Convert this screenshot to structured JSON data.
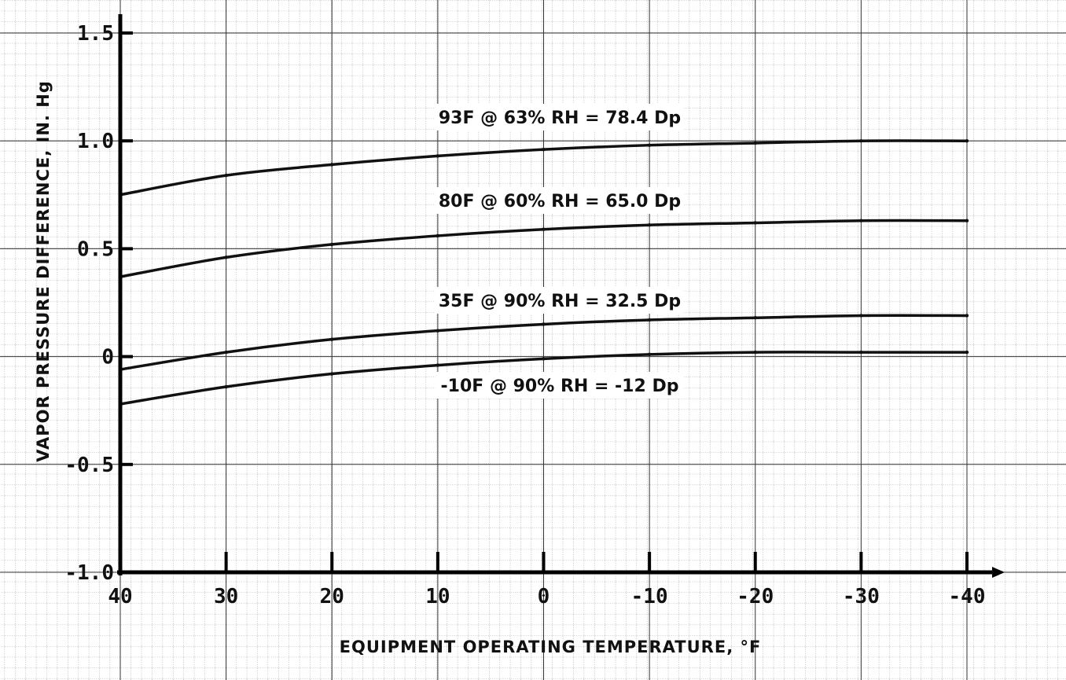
{
  "chart_data": {
    "type": "line",
    "title": "",
    "xlabel": "EQUIPMENT OPERATING TEMPERATURE, °F",
    "ylabel": "VAPOR PRESSURE DIFFERENCE, IN. Hg",
    "xlim": [
      40,
      -40
    ],
    "ylim": [
      -1.0,
      1.5
    ],
    "x_ticks": [
      40,
      30,
      20,
      10,
      0,
      -10,
      -20,
      -30,
      -40
    ],
    "x_tick_labels": [
      "40",
      "30",
      "20",
      "10",
      "0",
      "-10",
      "-20",
      "-30",
      "-40"
    ],
    "y_ticks": [
      1.5,
      1.0,
      0.5,
      0,
      -0.5,
      -1.0
    ],
    "y_tick_labels": [
      "1.5",
      "1.0",
      "0.5",
      "0",
      "-0.5",
      "-1.0"
    ],
    "grid": true,
    "x": [
      40,
      30,
      20,
      10,
      0,
      -10,
      -20,
      -30,
      -40
    ],
    "series": [
      {
        "name": "93F @ 63% RH = 78.4 Dp",
        "values": [
          0.75,
          0.84,
          0.89,
          0.93,
          0.96,
          0.98,
          0.99,
          1.0,
          1.0
        ]
      },
      {
        "name": "80F @ 60% RH = 65.0 Dp",
        "values": [
          0.37,
          0.46,
          0.52,
          0.56,
          0.59,
          0.61,
          0.62,
          0.63,
          0.63
        ]
      },
      {
        "name": "35F @ 90% RH = 32.5 Dp",
        "values": [
          -0.06,
          0.02,
          0.08,
          0.12,
          0.15,
          0.17,
          0.18,
          0.19,
          0.19
        ]
      },
      {
        "name": "-10F @ 90% RH = -12 Dp",
        "values": [
          -0.22,
          -0.14,
          -0.08,
          -0.04,
          -0.01,
          0.01,
          0.02,
          0.02,
          0.02
        ]
      }
    ]
  }
}
